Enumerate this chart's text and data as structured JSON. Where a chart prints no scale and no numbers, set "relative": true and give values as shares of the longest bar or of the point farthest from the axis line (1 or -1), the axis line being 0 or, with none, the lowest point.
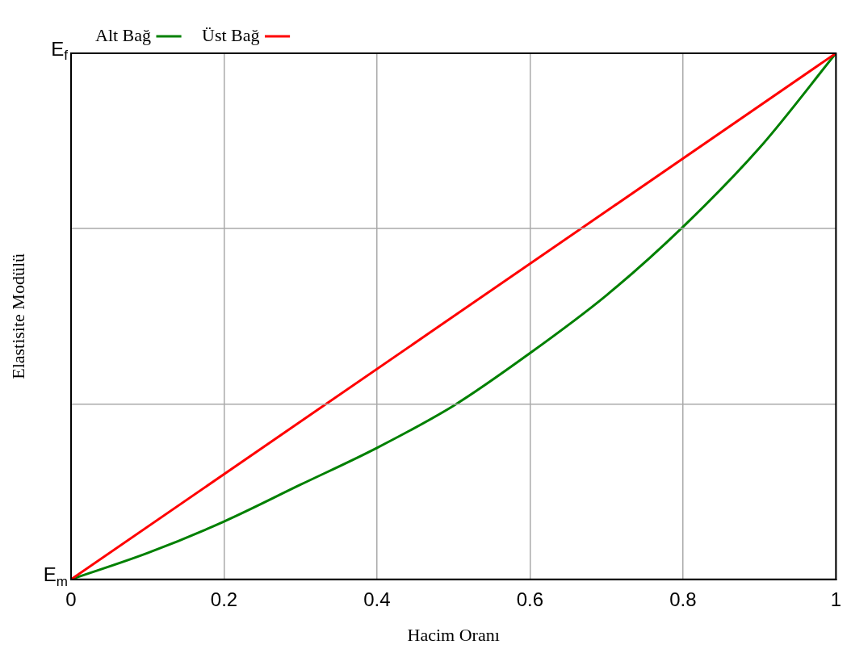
{
  "chart_data": {
    "type": "line",
    "xlabel": "Hacim Oranı",
    "ylabel": "Elastisite Modülü",
    "x": [
      0,
      0.1,
      0.2,
      0.3,
      0.4,
      0.5,
      0.6,
      0.7,
      0.8,
      0.9,
      1
    ],
    "series": [
      {
        "name": "Üst Bağ",
        "color": "#ff0000",
        "x": [
          0,
          1
        ],
        "values": [
          0,
          1
        ]
      },
      {
        "name": "Alt Bağ",
        "color": "#008000",
        "values": [
          0,
          0.05,
          0.11,
          0.18,
          0.25,
          0.33,
          0.43,
          0.54,
          0.67,
          0.82,
          1
        ]
      }
    ],
    "xlim": [
      0,
      1
    ],
    "xticks": [
      0,
      0.2,
      0.4,
      0.6,
      0.8,
      1
    ],
    "relative": true,
    "annotations": [
      "E$_{f}$",
      "E$_{m}$"
    ],
    "ref_lines": [
      {
        "axis": "y",
        "value": 0.333,
        "color": "#aaaaaa"
      },
      {
        "axis": "y",
        "value": 0.667,
        "color": "#aaaaaa"
      }
    ],
    "grid": "x",
    "legend": "top left",
    "marker": "none",
    "line_style": "solid"
  }
}
